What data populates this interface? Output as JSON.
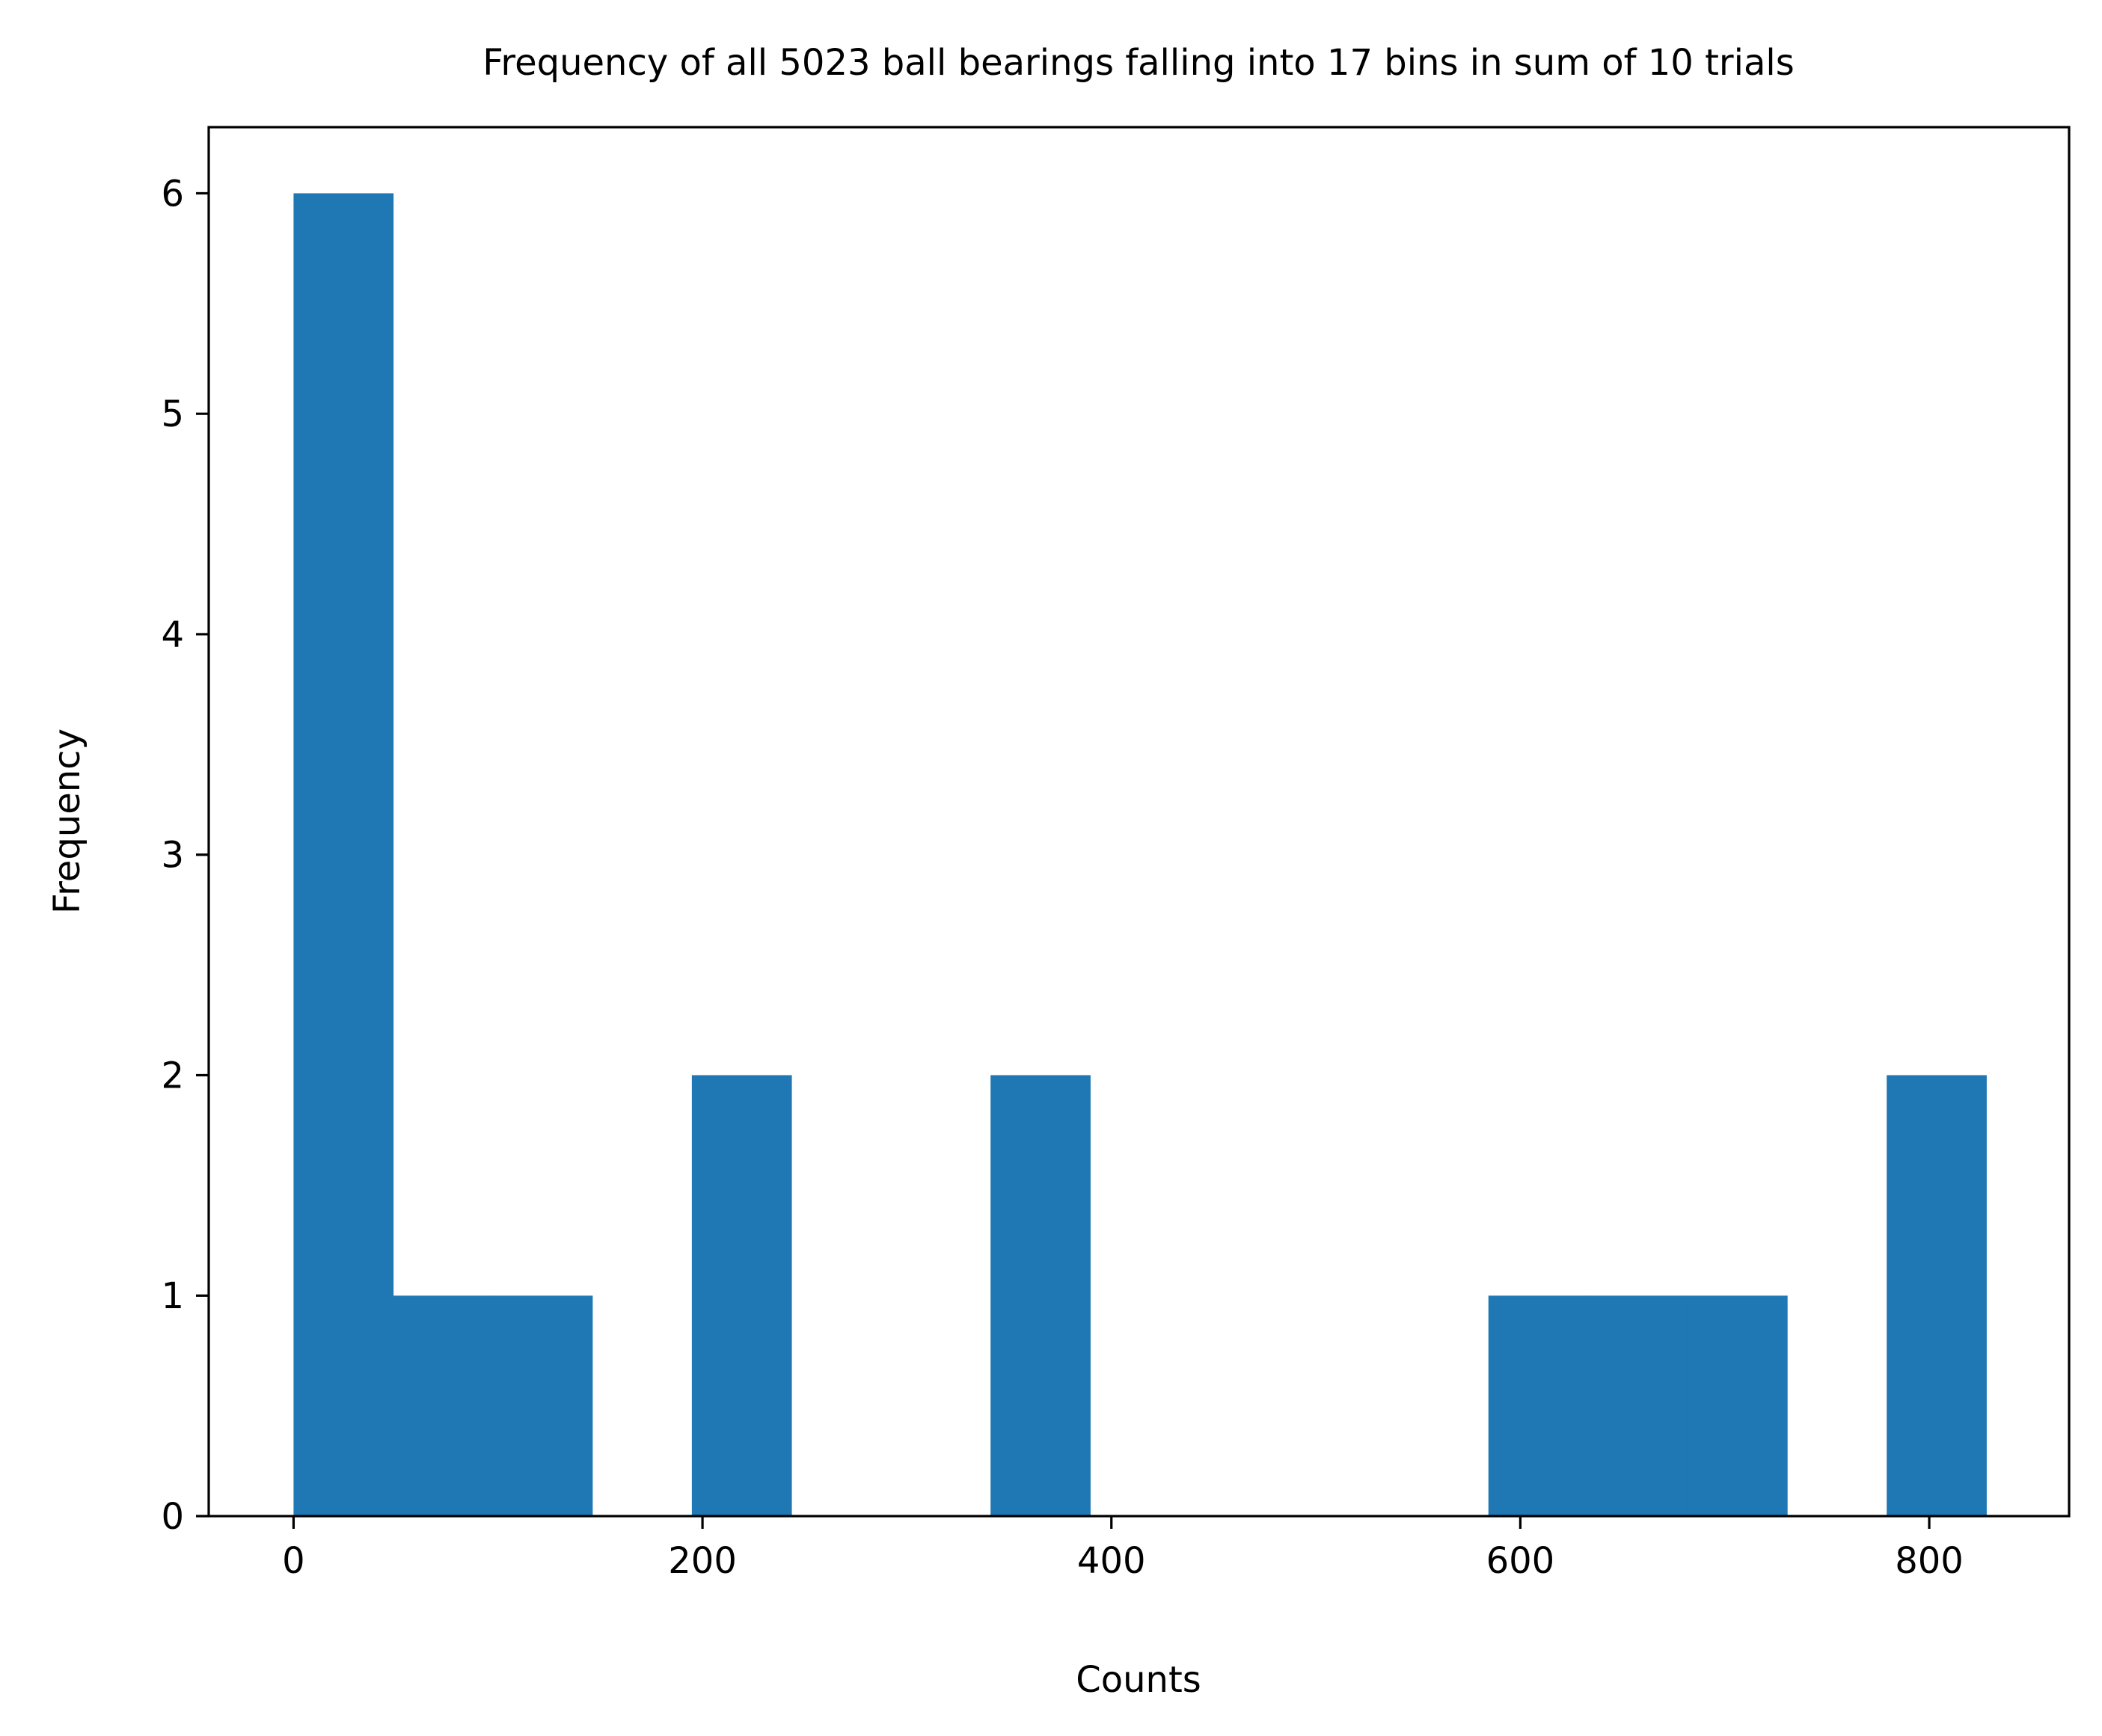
{
  "chart_data": {
    "type": "bar",
    "title": "Frequency of all 5023 ball bearings falling into 17 bins in sum of 10 trials",
    "xlabel": "Counts",
    "ylabel": "Frequency",
    "xlim": [
      -41.5,
      868.4
    ],
    "ylim": [
      0,
      6.3
    ],
    "x_ticks": [
      0,
      200,
      400,
      600,
      800
    ],
    "y_ticks": [
      0,
      1,
      2,
      3,
      4,
      5,
      6
    ],
    "bar_color": "#1f77b4",
    "grid": false,
    "bins": [
      {
        "start": 0,
        "end": 48.7,
        "value": 6
      },
      {
        "start": 48.7,
        "end": 97.4,
        "value": 1
      },
      {
        "start": 97.4,
        "end": 146.1,
        "value": 1
      },
      {
        "start": 146.1,
        "end": 194.8,
        "value": 0
      },
      {
        "start": 194.8,
        "end": 243.5,
        "value": 2
      },
      {
        "start": 243.5,
        "end": 292.2,
        "value": 0
      },
      {
        "start": 292.2,
        "end": 340.9,
        "value": 0
      },
      {
        "start": 340.9,
        "end": 389.6,
        "value": 2
      },
      {
        "start": 389.6,
        "end": 438.3,
        "value": 0
      },
      {
        "start": 438.3,
        "end": 487.0,
        "value": 0
      },
      {
        "start": 487.0,
        "end": 535.7,
        "value": 0
      },
      {
        "start": 535.7,
        "end": 584.4,
        "value": 0
      },
      {
        "start": 584.4,
        "end": 633.1,
        "value": 1
      },
      {
        "start": 633.1,
        "end": 681.8,
        "value": 1
      },
      {
        "start": 681.8,
        "end": 730.5,
        "value": 1
      },
      {
        "start": 730.5,
        "end": 779.2,
        "value": 0
      },
      {
        "start": 779.2,
        "end": 827.9,
        "value": 2
      }
    ]
  }
}
